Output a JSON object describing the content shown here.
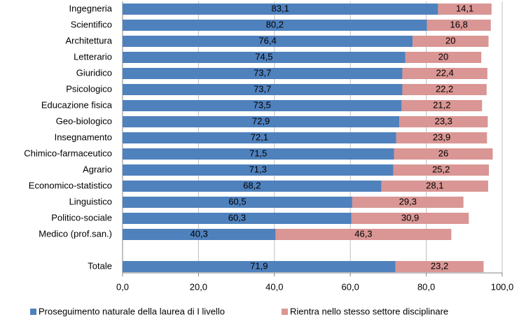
{
  "chart_data": {
    "type": "stacked-bar-horizontal",
    "categories": [
      "Ingegneria",
      "Scientifico",
      "Architettura",
      "Letterario",
      "Giuridico",
      "Psicologico",
      "Educazione fisica",
      "Geo-biologico",
      "Insegnamento",
      "Chimico-farmaceutico",
      "Agrario",
      "Economico-statistico",
      "Linguistico",
      "Politico-sociale",
      "Medico (prof.san.)",
      null,
      "Totale"
    ],
    "series": [
      {
        "name": "Proseguimento naturale della laurea di I livello",
        "color": "#4f81bd",
        "values": [
          83.1,
          80.2,
          76.4,
          74.5,
          73.7,
          73.7,
          73.5,
          72.9,
          72.1,
          71.5,
          71.3,
          68.2,
          60.5,
          60.3,
          40.3,
          null,
          71.9
        ],
        "value_labels": [
          "83,1",
          "80,2",
          "76,4",
          "74,5",
          "73,7",
          "73,7",
          "73,5",
          "72,9",
          "72,1",
          "71,5",
          "71,3",
          "68,2",
          "60,5",
          "60,3",
          "40,3",
          null,
          "71,9"
        ]
      },
      {
        "name": "Rientra nello stesso settore disciplinare",
        "color": "#d99694",
        "values": [
          14.1,
          16.8,
          20,
          20,
          22.4,
          22.2,
          21.2,
          23.3,
          23.9,
          26,
          25.2,
          28.1,
          29.3,
          30.9,
          46.3,
          null,
          23.2
        ],
        "value_labels": [
          "14,1",
          "16,8",
          "20",
          "20",
          "22,4",
          "22,2",
          "21,2",
          "23,3",
          "23,9",
          "26",
          "25,2",
          "28,1",
          "29,3",
          "30,9",
          "46,3",
          null,
          "23,2"
        ]
      }
    ],
    "xlim": [
      0,
      100
    ],
    "xticks": [
      {
        "value": 0,
        "label": "0,0"
      },
      {
        "value": 20,
        "label": "20,0"
      },
      {
        "value": 40,
        "label": "40,0"
      },
      {
        "value": 60,
        "label": "60,0"
      },
      {
        "value": 80,
        "label": "80,0"
      },
      {
        "value": 100,
        "label": "100,0"
      }
    ],
    "grid": true,
    "legend": "bottom"
  }
}
